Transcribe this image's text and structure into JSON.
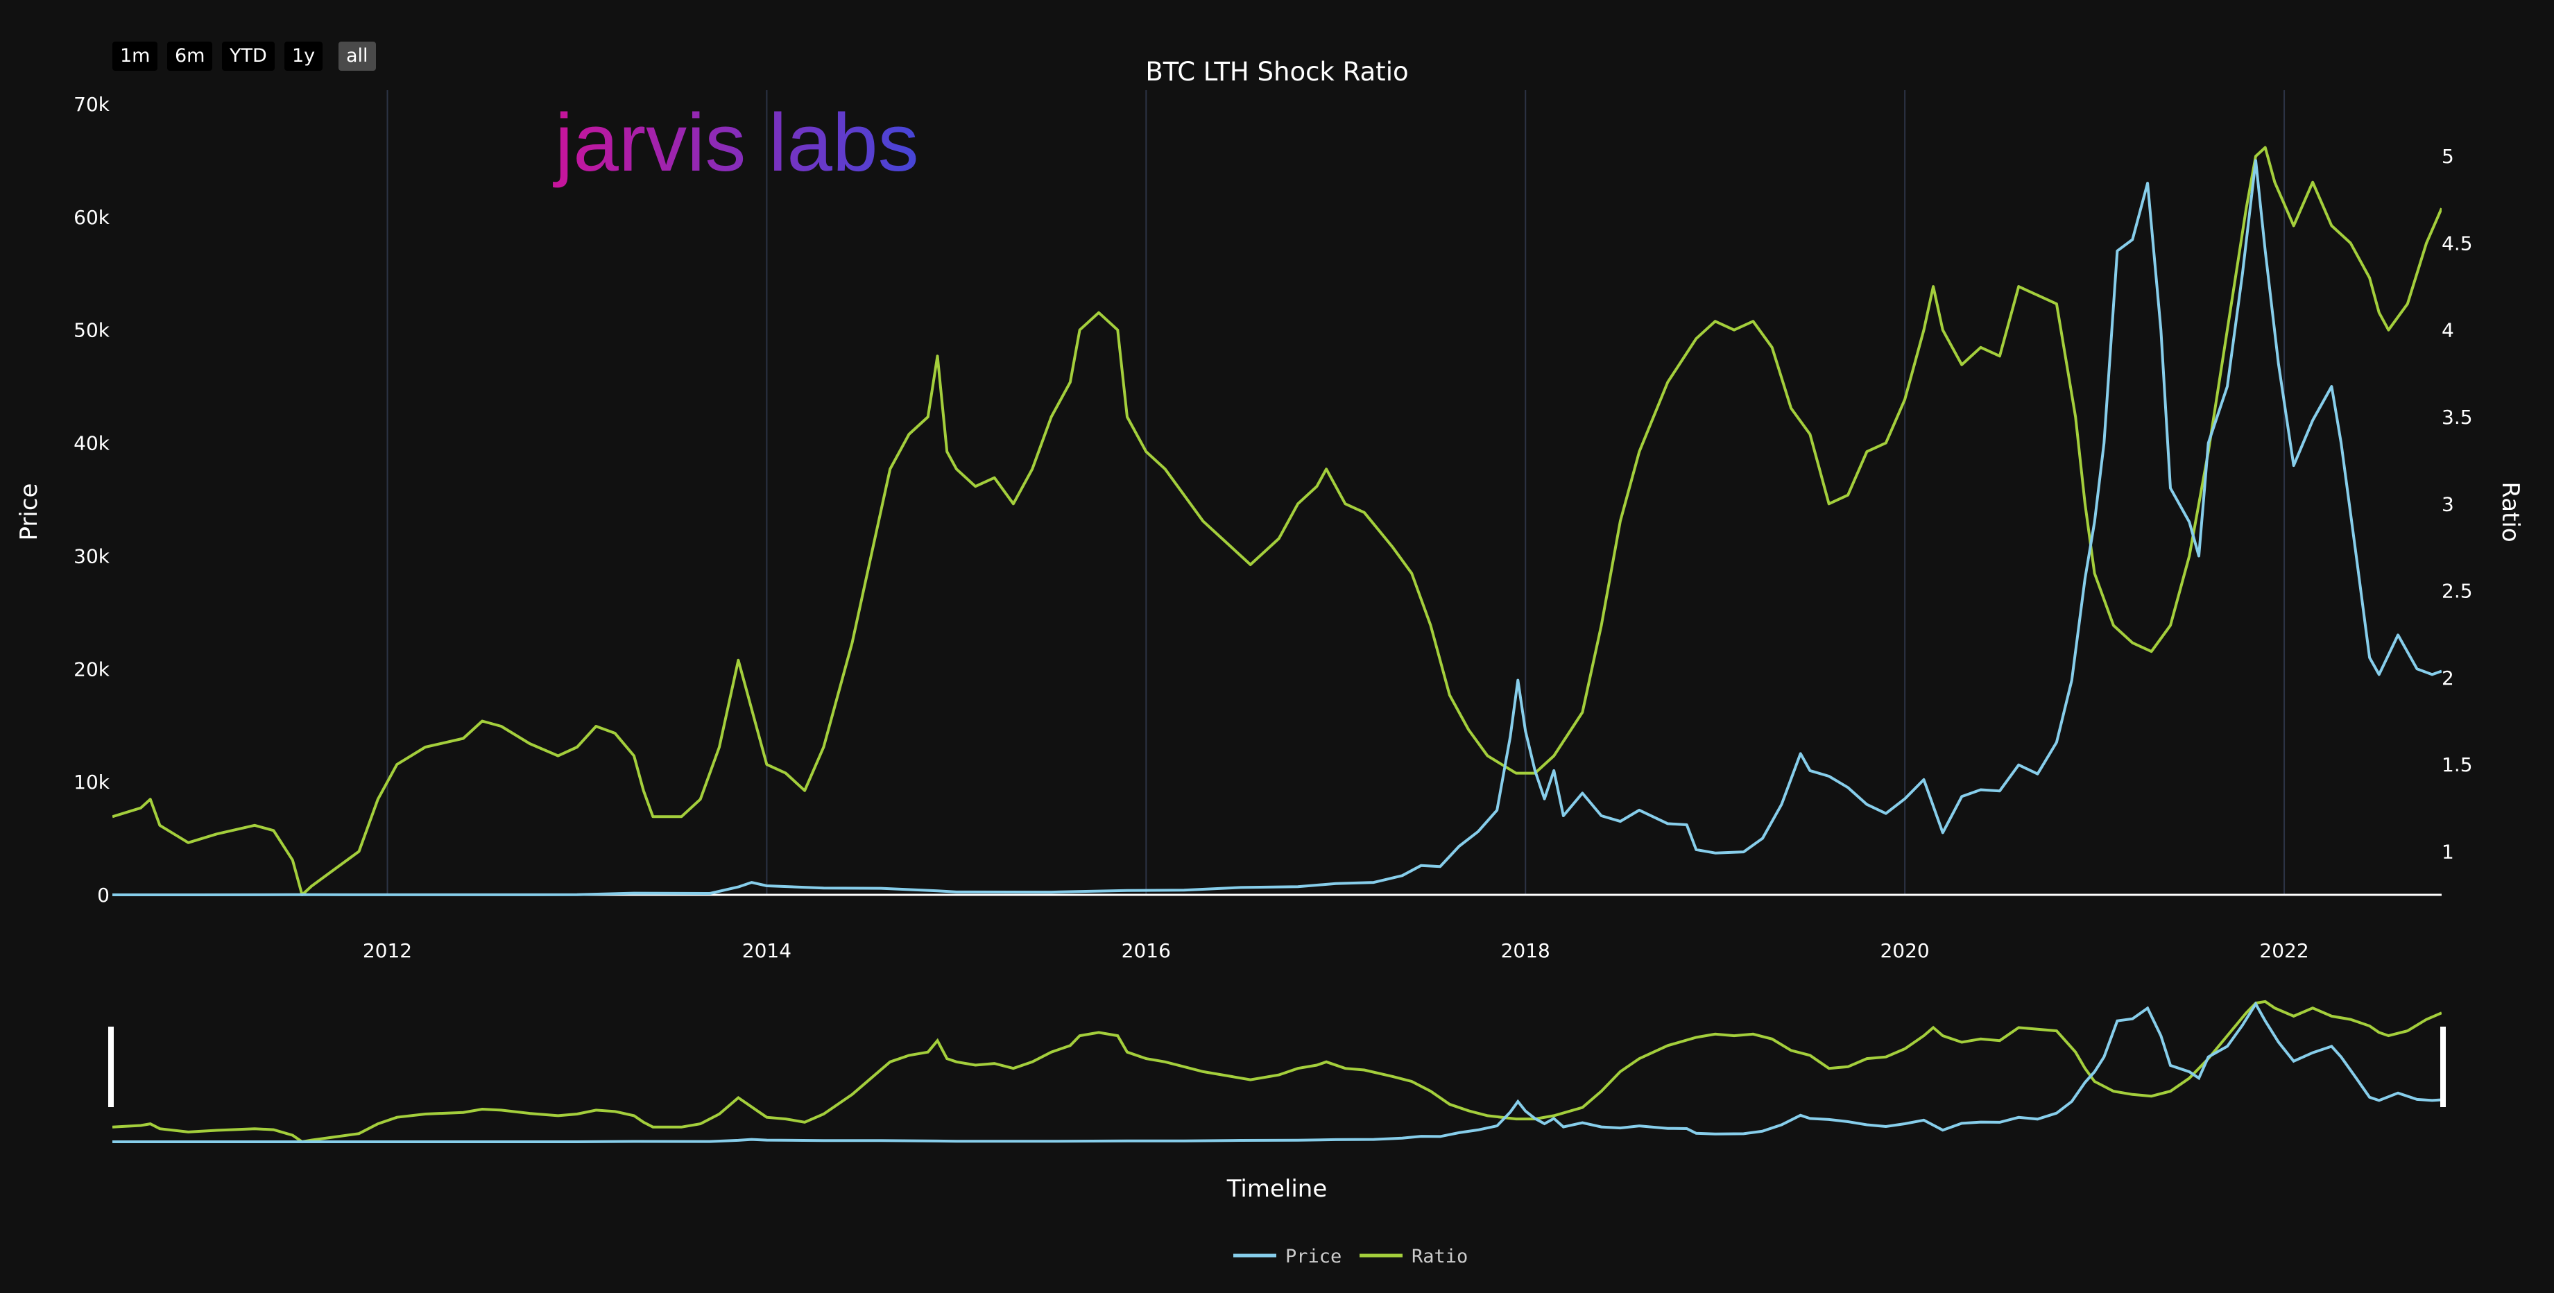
{
  "range_selector": {
    "buttons": [
      {
        "label": "1m",
        "active": false
      },
      {
        "label": "6m",
        "active": false
      },
      {
        "label": "YTD",
        "active": false
      },
      {
        "label": "1y",
        "active": false
      },
      {
        "label": "all",
        "active": true
      }
    ]
  },
  "logo_text": "jarvis labs",
  "colors": {
    "background": "#111111",
    "price_line": "#87ceeb",
    "ratio_line": "#a4cf3c",
    "grid": "#2c3345",
    "logo_start": "#c8149b",
    "logo_end": "#4646d8"
  },
  "chart_data": {
    "type": "line",
    "title": "BTC LTH Shock Ratio",
    "xlabel": "Timeline",
    "ylabel": "Price",
    "y2label": "Ratio",
    "xlim": [
      2010.55,
      2022.83
    ],
    "ylim": [
      0,
      70000
    ],
    "y2lim": [
      0.75,
      5.3
    ],
    "x_ticks": [
      "2012",
      "2014",
      "2016",
      "2018",
      "2020",
      "2022"
    ],
    "y_ticks": [
      "0",
      "10k",
      "20k",
      "30k",
      "40k",
      "50k",
      "60k",
      "70k"
    ],
    "y2_ticks": [
      "1",
      "1.5",
      "2",
      "2.5",
      "3",
      "3.5",
      "4",
      "4.5",
      "5"
    ],
    "legend_position": "bottom-center",
    "has_range_slider": true,
    "series": [
      {
        "name": "Price",
        "axis": "left",
        "points": [
          [
            2010.55,
            0
          ],
          [
            2011.0,
            0
          ],
          [
            2011.5,
            15
          ],
          [
            2012.0,
            5
          ],
          [
            2012.5,
            8
          ],
          [
            2013.0,
            13
          ],
          [
            2013.3,
            150
          ],
          [
            2013.7,
            120
          ],
          [
            2013.85,
            700
          ],
          [
            2013.92,
            1100
          ],
          [
            2014.0,
            800
          ],
          [
            2014.3,
            600
          ],
          [
            2014.6,
            580
          ],
          [
            2014.9,
            350
          ],
          [
            2015.0,
            250
          ],
          [
            2015.5,
            240
          ],
          [
            2015.9,
            380
          ],
          [
            2016.2,
            420
          ],
          [
            2016.5,
            650
          ],
          [
            2016.8,
            720
          ],
          [
            2017.0,
            1000
          ],
          [
            2017.2,
            1100
          ],
          [
            2017.35,
            1700
          ],
          [
            2017.45,
            2600
          ],
          [
            2017.55,
            2500
          ],
          [
            2017.65,
            4300
          ],
          [
            2017.75,
            5600
          ],
          [
            2017.85,
            7500
          ],
          [
            2017.92,
            14000
          ],
          [
            2017.96,
            19000
          ],
          [
            2018.0,
            14500
          ],
          [
            2018.05,
            11000
          ],
          [
            2018.1,
            8500
          ],
          [
            2018.15,
            11000
          ],
          [
            2018.2,
            7000
          ],
          [
            2018.3,
            9000
          ],
          [
            2018.4,
            7000
          ],
          [
            2018.5,
            6500
          ],
          [
            2018.6,
            7500
          ],
          [
            2018.75,
            6300
          ],
          [
            2018.85,
            6200
          ],
          [
            2018.9,
            4000
          ],
          [
            2019.0,
            3700
          ],
          [
            2019.15,
            3800
          ],
          [
            2019.25,
            5000
          ],
          [
            2019.35,
            8000
          ],
          [
            2019.45,
            12500
          ],
          [
            2019.5,
            11000
          ],
          [
            2019.6,
            10500
          ],
          [
            2019.7,
            9500
          ],
          [
            2019.8,
            8000
          ],
          [
            2019.9,
            7200
          ],
          [
            2020.0,
            8500
          ],
          [
            2020.1,
            10200
          ],
          [
            2020.2,
            5500
          ],
          [
            2020.3,
            8700
          ],
          [
            2020.4,
            9300
          ],
          [
            2020.5,
            9200
          ],
          [
            2020.6,
            11500
          ],
          [
            2020.7,
            10700
          ],
          [
            2020.8,
            13500
          ],
          [
            2020.88,
            19000
          ],
          [
            2020.95,
            28000
          ],
          [
            2021.0,
            33000
          ],
          [
            2021.05,
            40000
          ],
          [
            2021.12,
            57000
          ],
          [
            2021.2,
            58000
          ],
          [
            2021.28,
            63000
          ],
          [
            2021.35,
            50000
          ],
          [
            2021.4,
            36000
          ],
          [
            2021.5,
            33000
          ],
          [
            2021.55,
            30000
          ],
          [
            2021.6,
            40000
          ],
          [
            2021.7,
            45000
          ],
          [
            2021.78,
            55000
          ],
          [
            2021.85,
            65000
          ],
          [
            2021.9,
            57000
          ],
          [
            2021.97,
            47000
          ],
          [
            2022.05,
            38000
          ],
          [
            2022.15,
            42000
          ],
          [
            2022.25,
            45000
          ],
          [
            2022.3,
            40000
          ],
          [
            2022.38,
            30000
          ],
          [
            2022.45,
            21000
          ],
          [
            2022.5,
            19500
          ],
          [
            2022.6,
            23000
          ],
          [
            2022.7,
            20000
          ],
          [
            2022.78,
            19500
          ],
          [
            2022.83,
            19800
          ]
        ]
      },
      {
        "name": "Ratio",
        "axis": "right",
        "points": [
          [
            2010.55,
            1.2
          ],
          [
            2010.7,
            1.25
          ],
          [
            2010.75,
            1.3
          ],
          [
            2010.8,
            1.15
          ],
          [
            2010.95,
            1.05
          ],
          [
            2011.1,
            1.1
          ],
          [
            2011.3,
            1.15
          ],
          [
            2011.4,
            1.12
          ],
          [
            2011.5,
            0.95
          ],
          [
            2011.55,
            0.75
          ],
          [
            2011.6,
            0.8
          ],
          [
            2011.7,
            0.88
          ],
          [
            2011.85,
            1.0
          ],
          [
            2011.95,
            1.3
          ],
          [
            2012.05,
            1.5
          ],
          [
            2012.2,
            1.6
          ],
          [
            2012.4,
            1.65
          ],
          [
            2012.5,
            1.75
          ],
          [
            2012.6,
            1.72
          ],
          [
            2012.75,
            1.62
          ],
          [
            2012.9,
            1.55
          ],
          [
            2013.0,
            1.6
          ],
          [
            2013.1,
            1.72
          ],
          [
            2013.2,
            1.68
          ],
          [
            2013.3,
            1.55
          ],
          [
            2013.35,
            1.35
          ],
          [
            2013.4,
            1.2
          ],
          [
            2013.55,
            1.2
          ],
          [
            2013.65,
            1.3
          ],
          [
            2013.75,
            1.6
          ],
          [
            2013.85,
            2.1
          ],
          [
            2013.9,
            1.9
          ],
          [
            2013.95,
            1.7
          ],
          [
            2014.0,
            1.5
          ],
          [
            2014.1,
            1.45
          ],
          [
            2014.2,
            1.35
          ],
          [
            2014.3,
            1.6
          ],
          [
            2014.45,
            2.2
          ],
          [
            2014.55,
            2.7
          ],
          [
            2014.65,
            3.2
          ],
          [
            2014.75,
            3.4
          ],
          [
            2014.85,
            3.5
          ],
          [
            2014.9,
            3.85
          ],
          [
            2014.95,
            3.3
          ],
          [
            2015.0,
            3.2
          ],
          [
            2015.1,
            3.1
          ],
          [
            2015.2,
            3.15
          ],
          [
            2015.3,
            3.0
          ],
          [
            2015.4,
            3.2
          ],
          [
            2015.5,
            3.5
          ],
          [
            2015.6,
            3.7
          ],
          [
            2015.65,
            4.0
          ],
          [
            2015.75,
            4.1
          ],
          [
            2015.85,
            4.0
          ],
          [
            2015.9,
            3.5
          ],
          [
            2016.0,
            3.3
          ],
          [
            2016.1,
            3.2
          ],
          [
            2016.2,
            3.05
          ],
          [
            2016.3,
            2.9
          ],
          [
            2016.45,
            2.75
          ],
          [
            2016.55,
            2.65
          ],
          [
            2016.7,
            2.8
          ],
          [
            2016.8,
            3.0
          ],
          [
            2016.9,
            3.1
          ],
          [
            2016.95,
            3.2
          ],
          [
            2017.05,
            3.0
          ],
          [
            2017.15,
            2.95
          ],
          [
            2017.3,
            2.75
          ],
          [
            2017.4,
            2.6
          ],
          [
            2017.5,
            2.3
          ],
          [
            2017.6,
            1.9
          ],
          [
            2017.7,
            1.7
          ],
          [
            2017.8,
            1.55
          ],
          [
            2017.95,
            1.45
          ],
          [
            2018.05,
            1.45
          ],
          [
            2018.15,
            1.55
          ],
          [
            2018.3,
            1.8
          ],
          [
            2018.4,
            2.3
          ],
          [
            2018.5,
            2.9
          ],
          [
            2018.6,
            3.3
          ],
          [
            2018.75,
            3.7
          ],
          [
            2018.9,
            3.95
          ],
          [
            2019.0,
            4.05
          ],
          [
            2019.1,
            4.0
          ],
          [
            2019.2,
            4.05
          ],
          [
            2019.3,
            3.9
          ],
          [
            2019.4,
            3.55
          ],
          [
            2019.5,
            3.4
          ],
          [
            2019.6,
            3.0
          ],
          [
            2019.7,
            3.05
          ],
          [
            2019.8,
            3.3
          ],
          [
            2019.9,
            3.35
          ],
          [
            2020.0,
            3.6
          ],
          [
            2020.1,
            4.0
          ],
          [
            2020.15,
            4.25
          ],
          [
            2020.2,
            4.0
          ],
          [
            2020.3,
            3.8
          ],
          [
            2020.4,
            3.9
          ],
          [
            2020.5,
            3.85
          ],
          [
            2020.6,
            4.25
          ],
          [
            2020.7,
            4.2
          ],
          [
            2020.8,
            4.15
          ],
          [
            2020.9,
            3.5
          ],
          [
            2020.95,
            3.0
          ],
          [
            2021.0,
            2.6
          ],
          [
            2021.1,
            2.3
          ],
          [
            2021.2,
            2.2
          ],
          [
            2021.3,
            2.15
          ],
          [
            2021.4,
            2.3
          ],
          [
            2021.5,
            2.7
          ],
          [
            2021.6,
            3.3
          ],
          [
            2021.7,
            4.0
          ],
          [
            2021.8,
            4.7
          ],
          [
            2021.85,
            5.0
          ],
          [
            2021.9,
            5.05
          ],
          [
            2021.95,
            4.85
          ],
          [
            2022.05,
            4.6
          ],
          [
            2022.15,
            4.85
          ],
          [
            2022.25,
            4.6
          ],
          [
            2022.35,
            4.5
          ],
          [
            2022.45,
            4.3
          ],
          [
            2022.5,
            4.1
          ],
          [
            2022.55,
            4.0
          ],
          [
            2022.65,
            4.15
          ],
          [
            2022.75,
            4.5
          ],
          [
            2022.83,
            4.7
          ]
        ]
      }
    ]
  }
}
